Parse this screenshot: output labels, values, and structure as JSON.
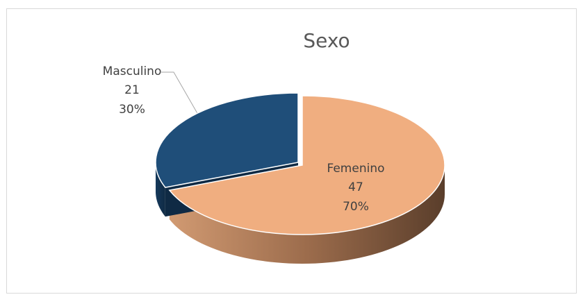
{
  "chart_data": {
    "type": "pie",
    "title": "Sexo",
    "categories": [
      "Femenino",
      "Masculino"
    ],
    "values": [
      47,
      21
    ],
    "percent_labels": [
      "70%",
      "30%"
    ],
    "colors": [
      "#f0ae80",
      "#1f4e79"
    ]
  }
}
